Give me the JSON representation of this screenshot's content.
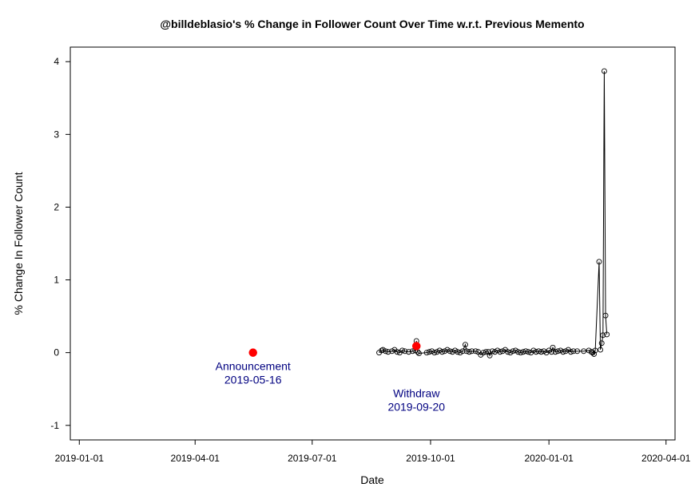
{
  "chart_data": {
    "type": "scatter",
    "title": "@billdeblasio's % Change in Follower Count Over Time w.r.t. Previous Memento",
    "xlabel": "Date",
    "ylabel": "% Change In Follower Count",
    "x_scale": "date",
    "xlim": [
      "2018-12-25",
      "2020-04-08"
    ],
    "ylim": [
      -1.2,
      4.2
    ],
    "x_ticks": [
      "2019-01-01",
      "2019-04-01",
      "2019-07-01",
      "2019-10-01",
      "2020-01-01",
      "2020-04-01"
    ],
    "y_ticks": [
      -1,
      0,
      1,
      2,
      3,
      4
    ],
    "grid": false,
    "colors": {
      "line": "#000000",
      "event_marker": "#ff0000",
      "event_text": "#000080"
    },
    "series": [
      {
        "points": [
          {
            "x": "2019-08-22",
            "y": 0.0
          },
          {
            "x": "2019-08-24",
            "y": 0.03
          },
          {
            "x": "2019-08-25",
            "y": 0.04
          },
          {
            "x": "2019-08-27",
            "y": 0.02
          },
          {
            "x": "2019-08-29",
            "y": 0.01
          },
          {
            "x": "2019-09-01",
            "y": 0.02
          },
          {
            "x": "2019-09-03",
            "y": 0.04
          },
          {
            "x": "2019-09-05",
            "y": 0.01
          },
          {
            "x": "2019-09-07",
            "y": 0.0
          },
          {
            "x": "2019-09-09",
            "y": 0.03
          },
          {
            "x": "2019-09-11",
            "y": 0.02
          },
          {
            "x": "2019-09-14",
            "y": 0.01
          },
          {
            "x": "2019-09-17",
            "y": 0.02
          },
          {
            "x": "2019-09-19",
            "y": 0.03
          },
          {
            "x": "2019-09-20",
            "y": 0.16
          },
          {
            "x": "2019-09-21",
            "y": 0.01
          },
          {
            "x": "2019-09-22",
            "y": -0.01
          },
          {
            "x": "2019-09-28",
            "y": 0.0
          },
          {
            "x": "2019-09-30",
            "y": 0.01
          },
          {
            "x": "2019-10-02",
            "y": 0.02
          },
          {
            "x": "2019-10-04",
            "y": 0.0
          },
          {
            "x": "2019-10-06",
            "y": 0.01
          },
          {
            "x": "2019-10-08",
            "y": 0.03
          },
          {
            "x": "2019-10-10",
            "y": 0.01
          },
          {
            "x": "2019-10-12",
            "y": 0.02
          },
          {
            "x": "2019-10-14",
            "y": 0.04
          },
          {
            "x": "2019-10-16",
            "y": 0.02
          },
          {
            "x": "2019-10-18",
            "y": 0.01
          },
          {
            "x": "2019-10-20",
            "y": 0.03
          },
          {
            "x": "2019-10-22",
            "y": 0.01
          },
          {
            "x": "2019-10-24",
            "y": 0.0
          },
          {
            "x": "2019-10-26",
            "y": 0.02
          },
          {
            "x": "2019-10-28",
            "y": 0.11
          },
          {
            "x": "2019-10-29",
            "y": 0.02
          },
          {
            "x": "2019-10-31",
            "y": 0.01
          },
          {
            "x": "2019-11-02",
            "y": 0.02
          },
          {
            "x": "2019-11-05",
            "y": 0.02
          },
          {
            "x": "2019-11-07",
            "y": 0.01
          },
          {
            "x": "2019-11-09",
            "y": -0.03
          },
          {
            "x": "2019-11-11",
            "y": 0.0
          },
          {
            "x": "2019-11-13",
            "y": 0.01
          },
          {
            "x": "2019-11-15",
            "y": 0.01
          },
          {
            "x": "2019-11-16",
            "y": -0.04
          },
          {
            "x": "2019-11-18",
            "y": 0.02
          },
          {
            "x": "2019-11-20",
            "y": 0.01
          },
          {
            "x": "2019-11-22",
            "y": 0.03
          },
          {
            "x": "2019-11-24",
            "y": 0.01
          },
          {
            "x": "2019-11-26",
            "y": 0.02
          },
          {
            "x": "2019-11-28",
            "y": 0.04
          },
          {
            "x": "2019-11-30",
            "y": 0.01
          },
          {
            "x": "2019-12-02",
            "y": 0.0
          },
          {
            "x": "2019-12-04",
            "y": 0.02
          },
          {
            "x": "2019-12-06",
            "y": 0.03
          },
          {
            "x": "2019-12-08",
            "y": 0.01
          },
          {
            "x": "2019-12-10",
            "y": 0.0
          },
          {
            "x": "2019-12-12",
            "y": 0.01
          },
          {
            "x": "2019-12-14",
            "y": 0.02
          },
          {
            "x": "2019-12-16",
            "y": 0.01
          },
          {
            "x": "2019-12-18",
            "y": 0.0
          },
          {
            "x": "2019-12-20",
            "y": 0.03
          },
          {
            "x": "2019-12-22",
            "y": 0.01
          },
          {
            "x": "2019-12-24",
            "y": 0.02
          },
          {
            "x": "2019-12-26",
            "y": 0.01
          },
          {
            "x": "2019-12-28",
            "y": 0.02
          },
          {
            "x": "2019-12-30",
            "y": 0.0
          },
          {
            "x": "2020-01-01",
            "y": 0.03
          },
          {
            "x": "2020-01-03",
            "y": 0.01
          },
          {
            "x": "2020-01-04",
            "y": 0.07
          },
          {
            "x": "2020-01-06",
            "y": 0.01
          },
          {
            "x": "2020-01-08",
            "y": 0.02
          },
          {
            "x": "2020-01-10",
            "y": 0.03
          },
          {
            "x": "2020-01-12",
            "y": 0.01
          },
          {
            "x": "2020-01-14",
            "y": 0.02
          },
          {
            "x": "2020-01-16",
            "y": 0.04
          },
          {
            "x": "2020-01-18",
            "y": 0.01
          },
          {
            "x": "2020-01-20",
            "y": 0.02
          },
          {
            "x": "2020-01-23",
            "y": 0.02
          },
          {
            "x": "2020-01-28",
            "y": 0.02
          },
          {
            "x": "2020-02-01",
            "y": 0.03
          },
          {
            "x": "2020-02-03",
            "y": 0.01
          },
          {
            "x": "2020-02-04",
            "y": 0.0
          },
          {
            "x": "2020-02-05",
            "y": -0.02
          },
          {
            "x": "2020-02-06",
            "y": 0.03
          },
          {
            "x": "2020-02-09",
            "y": 1.25
          },
          {
            "x": "2020-02-10",
            "y": 0.04
          },
          {
            "x": "2020-02-11",
            "y": 0.13
          },
          {
            "x": "2020-02-12",
            "y": 0.24
          },
          {
            "x": "2020-02-13",
            "y": 3.87
          },
          {
            "x": "2020-02-14",
            "y": 0.51
          },
          {
            "x": "2020-02-15",
            "y": 0.25
          }
        ]
      }
    ],
    "events": [
      {
        "label": "Announcement",
        "date": "2019-05-16",
        "x": "2019-05-16",
        "y": 0.0
      },
      {
        "label": "Withdraw",
        "date": "2019-09-20",
        "x": "2019-09-20",
        "y": 0.09
      }
    ]
  }
}
